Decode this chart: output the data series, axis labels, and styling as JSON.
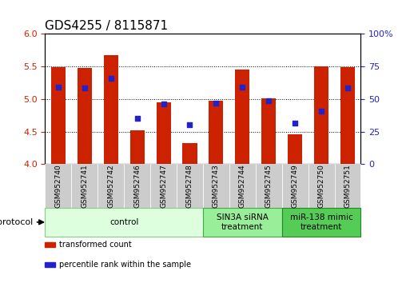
{
  "title": "GDS4255 / 8115871",
  "samples": [
    "GSM952740",
    "GSM952741",
    "GSM952742",
    "GSM952746",
    "GSM952747",
    "GSM952748",
    "GSM952743",
    "GSM952744",
    "GSM952745",
    "GSM952749",
    "GSM952750",
    "GSM952751"
  ],
  "bar_values": [
    5.49,
    5.48,
    5.67,
    4.52,
    4.95,
    4.32,
    4.97,
    5.45,
    5.01,
    4.46,
    5.5,
    5.49
  ],
  "dot_values": [
    5.18,
    5.17,
    5.32,
    4.7,
    4.93,
    4.6,
    4.94,
    5.18,
    4.98,
    4.63,
    4.82,
    5.17
  ],
  "bar_color": "#cc2200",
  "dot_color": "#2222cc",
  "ylim_left": [
    4.0,
    6.0
  ],
  "ylim_right": [
    0,
    100
  ],
  "yticks_left": [
    4.0,
    4.5,
    5.0,
    5.5,
    6.0
  ],
  "yticks_right": [
    0,
    25,
    50,
    75,
    100
  ],
  "ytick_labels_right": [
    "0",
    "25",
    "50",
    "75",
    "100%"
  ],
  "groups": [
    {
      "label": "control",
      "start": 0,
      "end": 6,
      "color": "#ddffdd",
      "edge_color": "#88cc88"
    },
    {
      "label": "SIN3A siRNA\ntreatment",
      "start": 6,
      "end": 9,
      "color": "#99ee99",
      "edge_color": "#44aa44"
    },
    {
      "label": "miR-138 mimic\ntreatment",
      "start": 9,
      "end": 12,
      "color": "#55cc55",
      "edge_color": "#228822"
    }
  ],
  "protocol_label": "protocol",
  "legend": [
    {
      "label": "transformed count",
      "color": "#cc2200"
    },
    {
      "label": "percentile rank within the sample",
      "color": "#2222cc"
    }
  ],
  "bar_width": 0.55,
  "dot_size": 25,
  "baseline": 4.0,
  "title_fontsize": 11,
  "tick_fontsize": 8,
  "sample_fontsize": 6.5,
  "group_fontsize": 7.5
}
